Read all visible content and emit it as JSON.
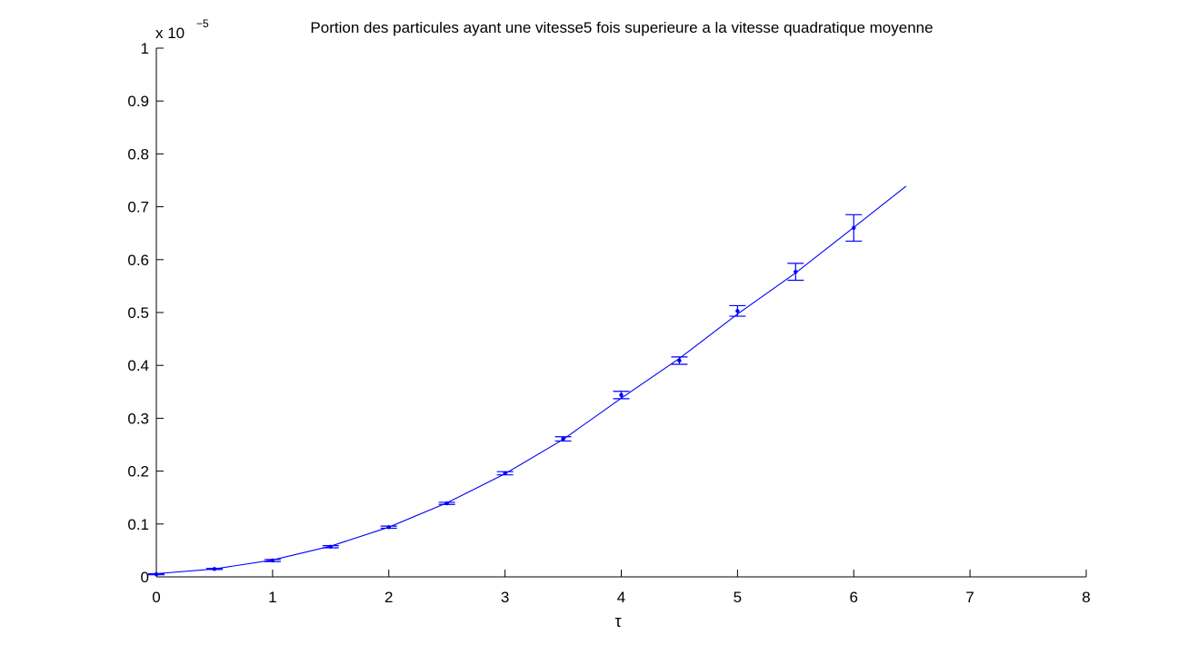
{
  "chart_data": {
    "type": "scatter",
    "title": "Portion des particules ayant une vitesse5 fois superieure a la vitesse quadratique moyenne",
    "xlabel": "τ",
    "ylabel": "",
    "y_multiplier": "x 10",
    "y_exponent": "−5",
    "xlim": [
      0,
      8
    ],
    "ylim": [
      0,
      1
    ],
    "xticks": [
      "0",
      "1",
      "2",
      "3",
      "4",
      "5",
      "6",
      "7",
      "8"
    ],
    "yticks": [
      "0",
      "0.1",
      "0.2",
      "0.3",
      "0.4",
      "0.5",
      "0.6",
      "0.7",
      "0.8",
      "0.9",
      "1"
    ],
    "grid": false,
    "color": "#0000ff",
    "series": [
      {
        "type": "errorbar",
        "x": [
          0,
          0.5,
          1,
          1.5,
          2,
          2.5,
          3,
          3.5,
          4,
          4.5,
          5,
          5.5,
          6
        ],
        "y": [
          0.005,
          0.015,
          0.031,
          0.057,
          0.094,
          0.139,
          0.196,
          0.261,
          0.344,
          0.409,
          0.503,
          0.577,
          0.66
        ],
        "err": [
          0.001,
          0.001,
          0.002,
          0.002,
          0.002,
          0.002,
          0.003,
          0.004,
          0.007,
          0.007,
          0.01,
          0.016,
          0.025
        ]
      },
      {
        "type": "line",
        "x": [
          0,
          0.5,
          1,
          1.5,
          2,
          2.5,
          3,
          3.5,
          4,
          4.5,
          5,
          5.5,
          6,
          6.45
        ],
        "y": [
          0.006,
          0.015,
          0.032,
          0.058,
          0.094,
          0.14,
          0.195,
          0.26,
          0.338,
          0.413,
          0.497,
          0.575,
          0.661,
          0.739
        ]
      }
    ]
  }
}
